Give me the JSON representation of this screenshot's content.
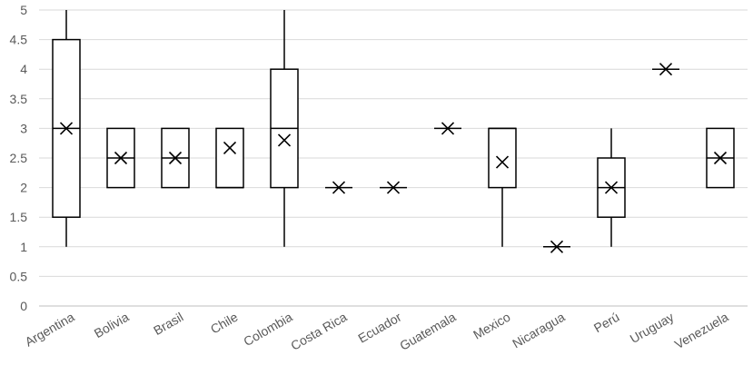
{
  "chart_data": {
    "type": "box",
    "title": "",
    "xlabel": "",
    "ylabel": "",
    "ylim": [
      0,
      5
    ],
    "yticks": [
      "0",
      "0.5",
      "1",
      "1.5",
      "2",
      "2.5",
      "3",
      "3.5",
      "4",
      "4.5",
      "5"
    ],
    "grid": true,
    "legend": "none",
    "categories": [
      "Argentina",
      "Bolivia",
      "Brasil",
      "Chile",
      "Colombia",
      "Costa Rica",
      "Ecuador",
      "Guatemala",
      "Mexico",
      "Nicaragua",
      "Perú",
      "Uruguay",
      "Venezuela"
    ],
    "boxes": [
      {
        "min": 1,
        "q1": 1.5,
        "median": 3,
        "q3": 4.5,
        "max": 5,
        "mean": 3
      },
      {
        "min": 2,
        "q1": 2,
        "median": 2.5,
        "q3": 3,
        "max": 3,
        "mean": 2.5
      },
      {
        "min": 2,
        "q1": 2,
        "median": 2.5,
        "q3": 3,
        "max": 3,
        "mean": 2.5
      },
      {
        "min": 2,
        "q1": 2,
        "median": 2,
        "q3": 3,
        "max": 3,
        "mean": 2.67
      },
      {
        "min": 1,
        "q1": 2,
        "median": 3,
        "q3": 4,
        "max": 5,
        "mean": 2.8
      },
      {
        "min": 2,
        "q1": 2,
        "median": 2,
        "q3": 2,
        "max": 2,
        "mean": 2
      },
      {
        "min": 2,
        "q1": 2,
        "median": 2,
        "q3": 2,
        "max": 2,
        "mean": 2
      },
      {
        "min": 3,
        "q1": 3,
        "median": 3,
        "q3": 3,
        "max": 3,
        "mean": 3
      },
      {
        "min": 1,
        "q1": 2,
        "median": 3,
        "q3": 3,
        "max": 3,
        "mean": 2.43
      },
      {
        "min": 1,
        "q1": 1,
        "median": 1,
        "q3": 1,
        "max": 1,
        "mean": 1
      },
      {
        "min": 1,
        "q1": 1.5,
        "median": 2,
        "q3": 2.5,
        "max": 3,
        "mean": 2
      },
      {
        "min": 4,
        "q1": 4,
        "median": 4,
        "q3": 4,
        "max": 4,
        "mean": 4
      },
      {
        "min": 2,
        "q1": 2,
        "median": 2.5,
        "q3": 3,
        "max": 3,
        "mean": 2.5
      }
    ]
  }
}
